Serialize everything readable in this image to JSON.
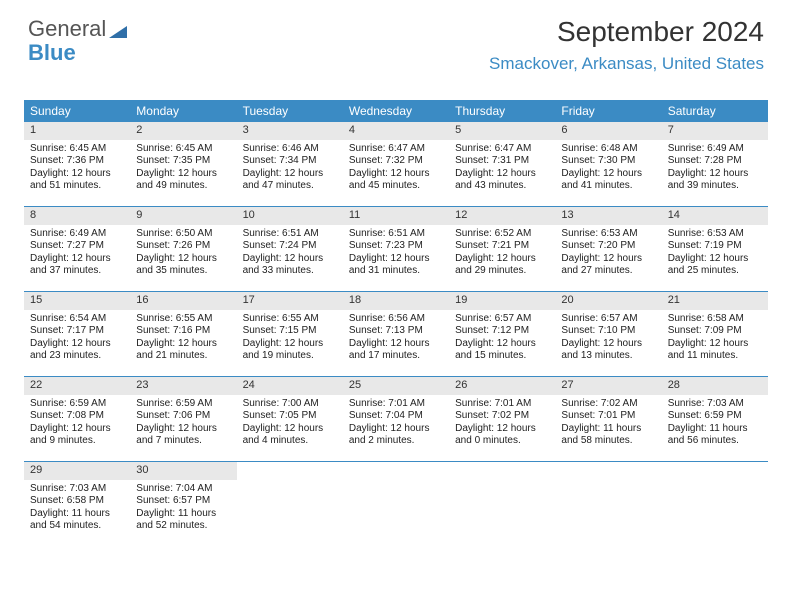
{
  "brand": {
    "part1": "General",
    "part2": "Blue"
  },
  "title": "September 2024",
  "location": "Smackover, Arkansas, United States",
  "colors": {
    "header_bg": "#3b8bc4",
    "header_text": "#ffffff",
    "daynum_bg": "#e8e8e8",
    "border": "#3b8bc4",
    "text": "#222222",
    "location_color": "#3b8bc4"
  },
  "day_names": [
    "Sunday",
    "Monday",
    "Tuesday",
    "Wednesday",
    "Thursday",
    "Friday",
    "Saturday"
  ],
  "weeks": [
    [
      {
        "n": "1",
        "sr": "6:45 AM",
        "ss": "7:36 PM",
        "dl": "12 hours and 51 minutes."
      },
      {
        "n": "2",
        "sr": "6:45 AM",
        "ss": "7:35 PM",
        "dl": "12 hours and 49 minutes."
      },
      {
        "n": "3",
        "sr": "6:46 AM",
        "ss": "7:34 PM",
        "dl": "12 hours and 47 minutes."
      },
      {
        "n": "4",
        "sr": "6:47 AM",
        "ss": "7:32 PM",
        "dl": "12 hours and 45 minutes."
      },
      {
        "n": "5",
        "sr": "6:47 AM",
        "ss": "7:31 PM",
        "dl": "12 hours and 43 minutes."
      },
      {
        "n": "6",
        "sr": "6:48 AM",
        "ss": "7:30 PM",
        "dl": "12 hours and 41 minutes."
      },
      {
        "n": "7",
        "sr": "6:49 AM",
        "ss": "7:28 PM",
        "dl": "12 hours and 39 minutes."
      }
    ],
    [
      {
        "n": "8",
        "sr": "6:49 AM",
        "ss": "7:27 PM",
        "dl": "12 hours and 37 minutes."
      },
      {
        "n": "9",
        "sr": "6:50 AM",
        "ss": "7:26 PM",
        "dl": "12 hours and 35 minutes."
      },
      {
        "n": "10",
        "sr": "6:51 AM",
        "ss": "7:24 PM",
        "dl": "12 hours and 33 minutes."
      },
      {
        "n": "11",
        "sr": "6:51 AM",
        "ss": "7:23 PM",
        "dl": "12 hours and 31 minutes."
      },
      {
        "n": "12",
        "sr": "6:52 AM",
        "ss": "7:21 PM",
        "dl": "12 hours and 29 minutes."
      },
      {
        "n": "13",
        "sr": "6:53 AM",
        "ss": "7:20 PM",
        "dl": "12 hours and 27 minutes."
      },
      {
        "n": "14",
        "sr": "6:53 AM",
        "ss": "7:19 PM",
        "dl": "12 hours and 25 minutes."
      }
    ],
    [
      {
        "n": "15",
        "sr": "6:54 AM",
        "ss": "7:17 PM",
        "dl": "12 hours and 23 minutes."
      },
      {
        "n": "16",
        "sr": "6:55 AM",
        "ss": "7:16 PM",
        "dl": "12 hours and 21 minutes."
      },
      {
        "n": "17",
        "sr": "6:55 AM",
        "ss": "7:15 PM",
        "dl": "12 hours and 19 minutes."
      },
      {
        "n": "18",
        "sr": "6:56 AM",
        "ss": "7:13 PM",
        "dl": "12 hours and 17 minutes."
      },
      {
        "n": "19",
        "sr": "6:57 AM",
        "ss": "7:12 PM",
        "dl": "12 hours and 15 minutes."
      },
      {
        "n": "20",
        "sr": "6:57 AM",
        "ss": "7:10 PM",
        "dl": "12 hours and 13 minutes."
      },
      {
        "n": "21",
        "sr": "6:58 AM",
        "ss": "7:09 PM",
        "dl": "12 hours and 11 minutes."
      }
    ],
    [
      {
        "n": "22",
        "sr": "6:59 AM",
        "ss": "7:08 PM",
        "dl": "12 hours and 9 minutes."
      },
      {
        "n": "23",
        "sr": "6:59 AM",
        "ss": "7:06 PM",
        "dl": "12 hours and 7 minutes."
      },
      {
        "n": "24",
        "sr": "7:00 AM",
        "ss": "7:05 PM",
        "dl": "12 hours and 4 minutes."
      },
      {
        "n": "25",
        "sr": "7:01 AM",
        "ss": "7:04 PM",
        "dl": "12 hours and 2 minutes."
      },
      {
        "n": "26",
        "sr": "7:01 AM",
        "ss": "7:02 PM",
        "dl": "12 hours and 0 minutes."
      },
      {
        "n": "27",
        "sr": "7:02 AM",
        "ss": "7:01 PM",
        "dl": "11 hours and 58 minutes."
      },
      {
        "n": "28",
        "sr": "7:03 AM",
        "ss": "6:59 PM",
        "dl": "11 hours and 56 minutes."
      }
    ],
    [
      {
        "n": "29",
        "sr": "7:03 AM",
        "ss": "6:58 PM",
        "dl": "11 hours and 54 minutes."
      },
      {
        "n": "30",
        "sr": "7:04 AM",
        "ss": "6:57 PM",
        "dl": "11 hours and 52 minutes."
      },
      null,
      null,
      null,
      null,
      null
    ]
  ],
  "labels": {
    "sunrise": "Sunrise:",
    "sunset": "Sunset:",
    "daylight": "Daylight:"
  }
}
